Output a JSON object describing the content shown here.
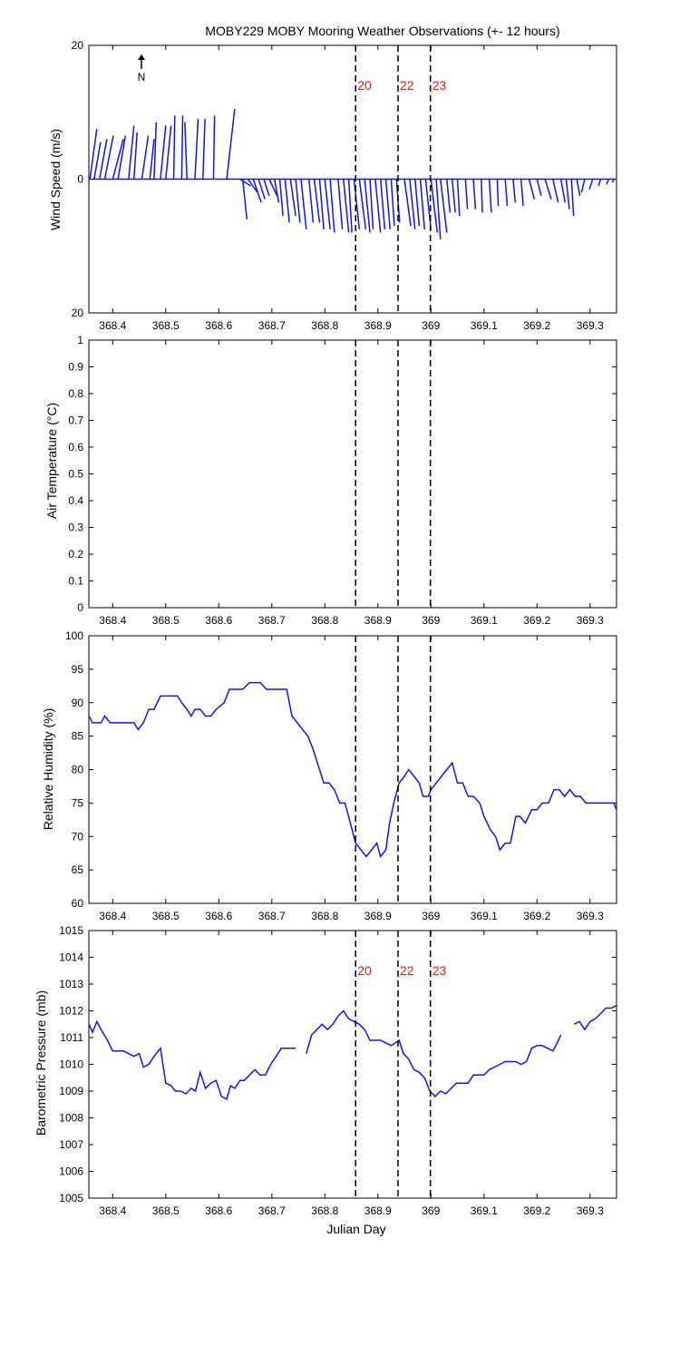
{
  "figure": {
    "title": "MOBY229 MOBY Mooring Weather Observations (+- 12 hours)",
    "xlabel": "Julian Day",
    "north_label": "N",
    "north_icon": "north-arrow-icon"
  },
  "colors": {
    "line": "#1414e6",
    "marker_text": "#cc2222",
    "marker_line": "#000000",
    "axes": "#000000"
  },
  "chart_data": [
    {
      "type": "vector",
      "name": "wind",
      "ylabel": "Wind Speed (m/s)",
      "xlim": [
        368.355,
        369.35
      ],
      "ylim": [
        -20,
        20
      ],
      "yticks": [
        -20,
        0,
        20
      ],
      "ytick_labels": [
        "20",
        "0",
        "20"
      ],
      "xticks": [
        368.4,
        368.5,
        368.6,
        368.7,
        368.8,
        368.9,
        369.0,
        369.1,
        369.2,
        369.3
      ],
      "xtick_labels": [
        "368.4",
        "368.5",
        "368.6",
        "368.7",
        "368.8",
        "368.9",
        "369",
        "369.1",
        "369.2",
        "369.3"
      ],
      "markers": [
        {
          "x": 368.858,
          "label": "20"
        },
        {
          "x": 368.938,
          "label": "22"
        },
        {
          "x": 368.999,
          "label": "23"
        }
      ],
      "vectors": [
        {
          "x": 368.357,
          "u": 0.013,
          "v": 7.5
        },
        {
          "x": 368.365,
          "u": 0.012,
          "v": 5.5
        },
        {
          "x": 368.375,
          "u": 0.014,
          "v": 6.0
        },
        {
          "x": 368.385,
          "u": 0.016,
          "v": 6.5
        },
        {
          "x": 368.4,
          "u": 0.02,
          "v": 6.0
        },
        {
          "x": 368.41,
          "u": 0.014,
          "v": 6.5
        },
        {
          "x": 368.43,
          "u": 0.01,
          "v": 8.0
        },
        {
          "x": 368.44,
          "u": 0.006,
          "v": 7.0
        },
        {
          "x": 368.455,
          "u": 0.012,
          "v": 6.5
        },
        {
          "x": 368.47,
          "u": 0.008,
          "v": 6.0
        },
        {
          "x": 368.478,
          "u": 0.004,
          "v": 8.5
        },
        {
          "x": 368.49,
          "u": 0.01,
          "v": 8.0
        },
        {
          "x": 368.5,
          "u": 0.01,
          "v": 8.0
        },
        {
          "x": 368.515,
          "u": 0.002,
          "v": 9.5
        },
        {
          "x": 368.53,
          "u": 0.002,
          "v": 9.5
        },
        {
          "x": 368.54,
          "u": -0.004,
          "v": 8.5
        },
        {
          "x": 368.555,
          "u": 0.006,
          "v": 9.0
        },
        {
          "x": 368.57,
          "u": 0.004,
          "v": 9.0
        },
        {
          "x": 368.59,
          "u": 0.002,
          "v": 9.5
        },
        {
          "x": 368.615,
          "u": 0.015,
          "v": 10.5
        },
        {
          "x": 368.64,
          "u": 0.02,
          "v": -1.0
        },
        {
          "x": 368.645,
          "u": 0.008,
          "v": -6.0
        },
        {
          "x": 368.655,
          "u": 0.018,
          "v": -2.0
        },
        {
          "x": 368.665,
          "u": 0.015,
          "v": -3.5
        },
        {
          "x": 368.675,
          "u": 0.012,
          "v": -3.0
        },
        {
          "x": 368.685,
          "u": 0.01,
          "v": -2.5
        },
        {
          "x": 368.695,
          "u": 0.015,
          "v": -2.5
        },
        {
          "x": 368.705,
          "u": 0.008,
          "v": -3.5
        },
        {
          "x": 368.715,
          "u": 0.006,
          "v": -5.5
        },
        {
          "x": 368.725,
          "u": 0.008,
          "v": -6.5
        },
        {
          "x": 368.735,
          "u": 0.01,
          "v": -5.5
        },
        {
          "x": 368.745,
          "u": 0.008,
          "v": -6.5
        },
        {
          "x": 368.755,
          "u": 0.01,
          "v": -7.5
        },
        {
          "x": 368.77,
          "u": 0.008,
          "v": -6.5
        },
        {
          "x": 368.78,
          "u": 0.01,
          "v": -6.5
        },
        {
          "x": 368.79,
          "u": 0.008,
          "v": -7.5
        },
        {
          "x": 368.8,
          "u": 0.01,
          "v": -7.5
        },
        {
          "x": 368.81,
          "u": 0.008,
          "v": -8.0
        },
        {
          "x": 368.825,
          "u": 0.008,
          "v": -7.5
        },
        {
          "x": 368.835,
          "u": 0.01,
          "v": -8.0
        },
        {
          "x": 368.845,
          "u": 0.006,
          "v": -8.0
        },
        {
          "x": 368.855,
          "u": 0.01,
          "v": -7.5
        },
        {
          "x": 368.865,
          "u": 0.012,
          "v": -7.5
        },
        {
          "x": 368.875,
          "u": 0.01,
          "v": -8.0
        },
        {
          "x": 368.885,
          "u": 0.006,
          "v": -7.5
        },
        {
          "x": 368.895,
          "u": 0.01,
          "v": -8.0
        },
        {
          "x": 368.905,
          "u": 0.008,
          "v": -7.5
        },
        {
          "x": 368.915,
          "u": 0.008,
          "v": -7.5
        },
        {
          "x": 368.925,
          "u": 0.006,
          "v": -7.0
        },
        {
          "x": 368.935,
          "u": 0.006,
          "v": -6.5
        },
        {
          "x": 368.95,
          "u": 0.012,
          "v": -7.0
        },
        {
          "x": 368.96,
          "u": 0.01,
          "v": -7.5
        },
        {
          "x": 368.97,
          "u": 0.008,
          "v": -7.0
        },
        {
          "x": 368.98,
          "u": 0.008,
          "v": -7.5
        },
        {
          "x": 368.99,
          "u": 0.01,
          "v": -7.5
        },
        {
          "x": 369.0,
          "u": 0.012,
          "v": -8.0
        },
        {
          "x": 369.01,
          "u": 0.008,
          "v": -9.0
        },
        {
          "x": 369.018,
          "u": 0.012,
          "v": -8.0
        },
        {
          "x": 369.03,
          "u": 0.006,
          "v": -5.0
        },
        {
          "x": 369.04,
          "u": 0.006,
          "v": -5.0
        },
        {
          "x": 369.05,
          "u": 0.004,
          "v": -5.5
        },
        {
          "x": 369.065,
          "u": 0.004,
          "v": -4.5
        },
        {
          "x": 369.08,
          "u": 0.004,
          "v": -4.5
        },
        {
          "x": 369.095,
          "u": 0.002,
          "v": -5.0
        },
        {
          "x": 369.11,
          "u": 0.004,
          "v": -5.0
        },
        {
          "x": 369.125,
          "u": 0.002,
          "v": -4.0
        },
        {
          "x": 369.14,
          "u": 0.004,
          "v": -4.0
        },
        {
          "x": 369.155,
          "u": 0.004,
          "v": -3.5
        },
        {
          "x": 369.17,
          "u": 0.004,
          "v": -4.0
        },
        {
          "x": 369.185,
          "u": 0.01,
          "v": -3.0
        },
        {
          "x": 369.2,
          "u": 0.008,
          "v": -2.5
        },
        {
          "x": 369.215,
          "u": 0.012,
          "v": -3.0
        },
        {
          "x": 369.23,
          "u": 0.01,
          "v": -3.5
        },
        {
          "x": 369.245,
          "u": 0.008,
          "v": -3.5
        },
        {
          "x": 369.255,
          "u": 0.006,
          "v": -4.5
        },
        {
          "x": 369.265,
          "u": 0.004,
          "v": -5.5
        },
        {
          "x": 369.275,
          "u": 0.006,
          "v": -2.5
        },
        {
          "x": 369.29,
          "u": -0.006,
          "v": -2.0
        },
        {
          "x": 369.305,
          "u": -0.006,
          "v": -1.5
        },
        {
          "x": 369.32,
          "u": -0.004,
          "v": -1.0
        },
        {
          "x": 369.335,
          "u": -0.004,
          "v": -0.8
        },
        {
          "x": 369.345,
          "u": -0.003,
          "v": -0.5
        }
      ]
    },
    {
      "type": "line",
      "name": "air_temperature",
      "ylabel": "Air Temperature (°C)",
      "xlim": [
        368.355,
        369.35
      ],
      "ylim": [
        0,
        1
      ],
      "yticks": [
        0,
        0.1,
        0.2,
        0.3,
        0.4,
        0.5,
        0.6,
        0.7,
        0.8,
        0.9,
        1
      ],
      "ytick_labels": [
        "0",
        "0.1",
        "0.2",
        "0.3",
        "0.4",
        "0.5",
        "0.6",
        "0.7",
        "0.8",
        "0.9",
        "1"
      ],
      "xticks": [
        368.4,
        368.5,
        368.6,
        368.7,
        368.8,
        368.9,
        369.0,
        369.1,
        369.2,
        369.3
      ],
      "xtick_labels": [
        "368.4",
        "368.5",
        "368.6",
        "368.7",
        "368.8",
        "368.9",
        "369",
        "369.1",
        "369.2",
        "369.3"
      ],
      "markers": [
        {
          "x": 368.858,
          "label": ""
        },
        {
          "x": 368.938,
          "label": ""
        },
        {
          "x": 368.999,
          "label": ""
        }
      ],
      "x": [],
      "y": []
    },
    {
      "type": "line",
      "name": "relative_humidity",
      "ylabel": "Relative Humidity (%)",
      "xlim": [
        368.355,
        369.35
      ],
      "ylim": [
        60,
        100
      ],
      "yticks": [
        60,
        65,
        70,
        75,
        80,
        85,
        90,
        95,
        100
      ],
      "ytick_labels": [
        "60",
        "65",
        "70",
        "75",
        "80",
        "85",
        "90",
        "95",
        "100"
      ],
      "xticks": [
        368.4,
        368.5,
        368.6,
        368.7,
        368.8,
        368.9,
        369.0,
        369.1,
        369.2,
        369.3
      ],
      "xtick_labels": [
        "368.4",
        "368.5",
        "368.6",
        "368.7",
        "368.8",
        "368.9",
        "369",
        "369.1",
        "369.2",
        "369.3"
      ],
      "markers": [
        {
          "x": 368.858,
          "label": ""
        },
        {
          "x": 368.938,
          "label": ""
        },
        {
          "x": 368.999,
          "label": ""
        }
      ],
      "x": [
        368.355,
        368.362,
        368.37,
        368.378,
        368.385,
        368.395,
        368.405,
        368.418,
        368.43,
        368.44,
        368.448,
        368.458,
        368.468,
        368.478,
        368.49,
        368.5,
        368.512,
        368.522,
        368.53,
        368.54,
        368.548,
        368.555,
        368.565,
        368.575,
        368.585,
        368.595,
        368.61,
        368.62,
        368.63,
        368.645,
        368.658,
        368.668,
        368.678,
        368.69,
        368.7,
        368.718,
        368.728,
        368.738,
        368.748,
        368.758,
        368.768,
        368.778,
        368.79,
        368.798,
        368.808,
        368.818,
        368.828,
        368.838,
        368.848,
        368.858,
        368.868,
        368.878,
        368.888,
        368.898,
        368.905,
        368.915,
        368.922,
        368.93,
        368.94,
        368.95,
        368.958,
        368.968,
        368.978,
        368.985,
        368.995,
        369.0,
        369.01,
        369.02,
        369.03,
        369.04,
        369.05,
        369.06,
        369.07,
        369.08,
        369.092,
        369.1,
        369.112,
        369.122,
        369.13,
        369.14,
        369.15,
        369.16,
        369.168,
        369.178,
        369.19,
        369.2,
        369.21,
        369.222,
        369.232,
        369.242,
        369.252,
        369.262,
        369.272,
        369.282,
        369.292,
        369.305,
        369.315,
        369.325,
        369.335,
        369.345,
        369.35
      ],
      "y": [
        88,
        87,
        87,
        87,
        88,
        87,
        87,
        87,
        87,
        87,
        86,
        87,
        89,
        89,
        91,
        91,
        91,
        91,
        90,
        89,
        88,
        89,
        89,
        88,
        88,
        89,
        90,
        92,
        92,
        92,
        93,
        93,
        93,
        92,
        92,
        92,
        92,
        88,
        87,
        86,
        85,
        83,
        80,
        78,
        78,
        77,
        75,
        75,
        72,
        69,
        68,
        67,
        68,
        69,
        67,
        68,
        72,
        75,
        78,
        79,
        80,
        79,
        78,
        76,
        76,
        77,
        78,
        79,
        80,
        81,
        78,
        78,
        76,
        76,
        75,
        73,
        71,
        70,
        68,
        69,
        69,
        73,
        73,
        72,
        74,
        74,
        75,
        75,
        77,
        77,
        76,
        77,
        76,
        76,
        75,
        75,
        75,
        75,
        75,
        75,
        74
      ]
    },
    {
      "type": "line",
      "name": "barometric_pressure",
      "ylabel": "Barometric Pressure (mb)",
      "xlim": [
        368.355,
        369.35
      ],
      "ylim": [
        1005,
        1015
      ],
      "yticks": [
        1005,
        1006,
        1007,
        1008,
        1009,
        1010,
        1011,
        1012,
        1013,
        1014,
        1015
      ],
      "ytick_labels": [
        "1005",
        "1006",
        "1007",
        "1008",
        "1009",
        "1010",
        "1011",
        "1012",
        "1013",
        "1014",
        "1015"
      ],
      "xticks": [
        368.4,
        368.5,
        368.6,
        368.7,
        368.8,
        368.9,
        369.0,
        369.1,
        369.2,
        369.3
      ],
      "xtick_labels": [
        "368.4",
        "368.5",
        "368.6",
        "368.7",
        "368.8",
        "368.9",
        "369",
        "369.1",
        "369.2",
        "369.3"
      ],
      "markers": [
        {
          "x": 368.858,
          "label": "20"
        },
        {
          "x": 368.938,
          "label": "22"
        },
        {
          "x": 368.999,
          "label": "23"
        }
      ],
      "segments": [
        {
          "x": [
            368.355,
            368.362,
            368.37,
            368.378,
            368.39,
            368.4,
            368.41,
            368.42,
            368.43,
            368.44,
            368.45,
            368.458,
            368.468,
            368.478,
            368.49,
            368.5,
            368.51,
            368.518,
            368.528,
            368.538,
            368.548,
            368.556,
            368.565,
            368.575,
            368.585,
            368.595,
            368.605,
            368.615,
            368.622,
            368.63,
            368.64,
            368.648,
            368.658,
            368.668,
            368.678,
            368.688,
            368.698,
            368.708,
            368.718,
            368.728,
            368.738,
            368.745
          ],
          "y": [
            1011.5,
            1011.2,
            1011.6,
            1011.3,
            1010.9,
            1010.5,
            1010.5,
            1010.5,
            1010.4,
            1010.3,
            1010.4,
            1009.9,
            1010.0,
            1010.3,
            1010.6,
            1009.3,
            1009.2,
            1009.0,
            1009.0,
            1008.9,
            1009.1,
            1009.0,
            1009.7,
            1009.1,
            1009.3,
            1009.4,
            1008.8,
            1008.7,
            1009.2,
            1009.1,
            1009.4,
            1009.4,
            1009.6,
            1009.8,
            1009.6,
            1009.6,
            1010.0,
            1010.3,
            1010.6,
            1010.6,
            1010.6,
            1010.6
          ]
        },
        {
          "x": [
            368.765,
            368.775,
            368.785,
            368.795,
            368.805,
            368.815,
            368.825,
            368.835,
            368.845,
            368.855,
            368.865,
            368.875,
            368.885,
            368.895,
            368.905,
            368.915,
            368.925,
            368.933,
            368.94,
            368.948,
            368.958,
            368.968,
            368.978,
            368.988,
            368.998,
            369.008,
            369.018,
            369.028,
            369.038,
            369.048,
            369.06,
            369.07,
            369.08,
            369.09,
            369.1,
            369.11,
            369.12,
            369.13,
            369.14,
            369.15,
            369.16,
            369.17,
            369.18,
            369.19,
            369.2,
            369.21,
            369.22,
            369.23,
            369.238,
            369.245
          ],
          "y": [
            1010.4,
            1011.1,
            1011.3,
            1011.5,
            1011.3,
            1011.5,
            1011.8,
            1012.0,
            1011.7,
            1011.6,
            1011.5,
            1011.3,
            1010.9,
            1010.9,
            1010.9,
            1010.8,
            1010.7,
            1010.8,
            1010.9,
            1010.4,
            1010.2,
            1009.8,
            1009.7,
            1009.5,
            1009.0,
            1008.8,
            1009.0,
            1008.9,
            1009.1,
            1009.3,
            1009.3,
            1009.3,
            1009.6,
            1009.6,
            1009.6,
            1009.8,
            1009.9,
            1010.0,
            1010.1,
            1010.1,
            1010.1,
            1010.0,
            1010.1,
            1010.6,
            1010.7,
            1010.7,
            1010.6,
            1010.5,
            1010.8,
            1011.1
          ]
        },
        {
          "x": [
            369.27,
            369.28,
            369.29,
            369.3,
            369.31,
            369.32,
            369.33,
            369.34,
            369.35
          ],
          "y": [
            1011.5,
            1011.6,
            1011.3,
            1011.6,
            1011.7,
            1011.9,
            1012.1,
            1012.1,
            1012.2
          ]
        }
      ]
    }
  ]
}
